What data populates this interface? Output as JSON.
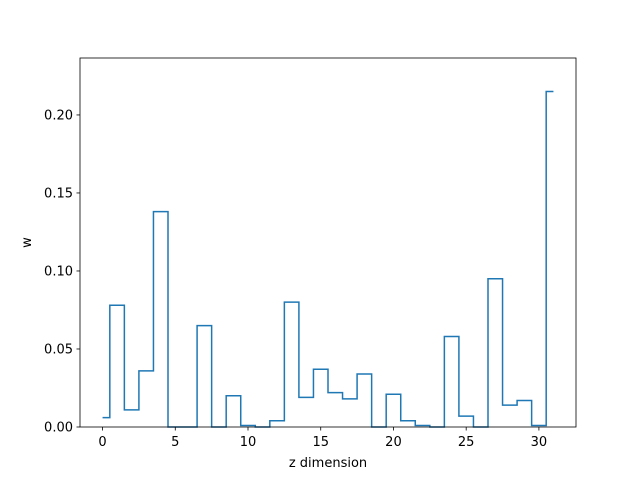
{
  "chart_data": {
    "type": "line",
    "drawstyle": "steps-mid",
    "title": "",
    "xlabel": "z dimension",
    "ylabel": "w",
    "xlim": [
      -1.55,
      32.55
    ],
    "ylim": [
      0,
      0.2365
    ],
    "xticks": [
      0,
      5,
      10,
      15,
      20,
      25,
      30
    ],
    "yticks": [
      0.0,
      0.05,
      0.1,
      0.15,
      0.2
    ],
    "ytick_labels": [
      "0.00",
      "0.05",
      "0.10",
      "0.15",
      "0.20"
    ],
    "grid": false,
    "legend": "none",
    "color": "#1f77b4",
    "series": [
      {
        "x": [
          0,
          1,
          2,
          3,
          4,
          5,
          6,
          7,
          8,
          9,
          10,
          11,
          12,
          13,
          14,
          15,
          16,
          17,
          18,
          19,
          20,
          21,
          22,
          23,
          24,
          25,
          26,
          27,
          28,
          29,
          30,
          31
        ],
        "values": [
          0.006,
          0.078,
          0.011,
          0.036,
          0.138,
          0.0,
          0.0,
          0.065,
          0.0,
          0.02,
          0.001,
          0.0,
          0.004,
          0.08,
          0.019,
          0.037,
          0.022,
          0.018,
          0.034,
          0.0,
          0.021,
          0.004,
          0.001,
          0.0,
          0.058,
          0.007,
          0.0,
          0.095,
          0.014,
          0.017,
          0.001,
          0.215
        ]
      }
    ]
  }
}
